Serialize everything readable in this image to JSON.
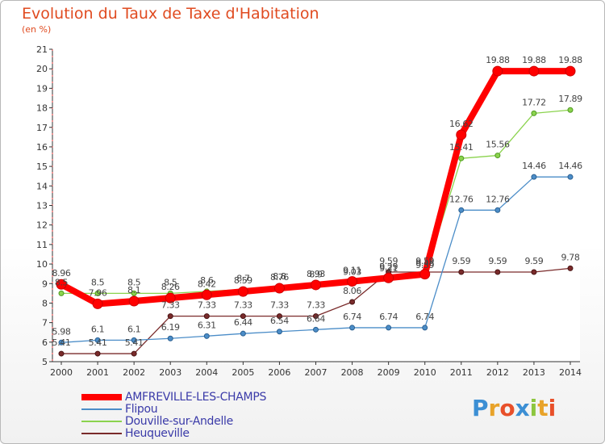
{
  "header": {
    "title": "Evolution du Taux de Taxe d'Habitation",
    "unit": "(en %)"
  },
  "brand": {
    "text": "Proxiti",
    "colors": [
      "#3c8fd4",
      "#e8a32a",
      "#e8502a",
      "#3c8fd4",
      "#8dc63f",
      "#e8a32a",
      "#e8502a"
    ]
  },
  "chart_data": {
    "type": "line",
    "title": "Evolution du Taux de Taxe d'Habitation",
    "ylabel": "(en %)",
    "xlabel": "",
    "ylim": [
      5,
      21
    ],
    "yticks": [
      "5",
      "6",
      "7",
      "8",
      "9",
      "10",
      "11",
      "12",
      "13",
      "14",
      "15",
      "16",
      "17",
      "18",
      "19",
      "20",
      "21"
    ],
    "x": [
      "2000",
      "2001",
      "2002",
      "2003",
      "2004",
      "2005",
      "2006",
      "2007",
      "2008",
      "2009",
      "2010",
      "2011",
      "2012",
      "2013",
      "2014"
    ],
    "grid": false,
    "legend_position": "bottom-left",
    "series": [
      {
        "name": "AMFREVILLE-LES-CHAMPS",
        "color": "#ff0000",
        "values": [
          8.96,
          7.96,
          8.1,
          8.26,
          8.42,
          8.59,
          8.76,
          8.93,
          9.11,
          9.29,
          9.48,
          16.62,
          19.88,
          19.88,
          19.88
        ],
        "labels": [
          "8.96",
          "7.96",
          "8.1",
          "8.26",
          "8.42",
          "8.59",
          "8.76",
          "8.93",
          "9.11",
          "9.29",
          "9.48",
          "16.62",
          "19.88",
          "19.88",
          "19.88"
        ]
      },
      {
        "name": "Flipou",
        "color": "#4b8dc8",
        "values": [
          5.98,
          6.1,
          6.1,
          6.19,
          6.31,
          6.44,
          6.54,
          6.64,
          6.74,
          6.74,
          6.74,
          12.76,
          12.76,
          14.46,
          14.46
        ],
        "labels": [
          "5.98",
          "6.1",
          "6.1",
          "6.19",
          "6.31",
          "6.44",
          "6.54",
          "6.64",
          "6.74",
          "6.74",
          "6.74",
          "12.76",
          "12.76",
          "14.46",
          "14.46"
        ]
      },
      {
        "name": "Douville-sur-Andelle",
        "color": "#8bd34e",
        "values": [
          8.5,
          8.5,
          8.5,
          8.5,
          8.6,
          8.7,
          8.8,
          8.9,
          9.03,
          9.21,
          9.39,
          15.41,
          15.56,
          17.72,
          17.89
        ],
        "labels": [
          "8.5",
          "8.5",
          "8.5",
          "8.5",
          "8.6",
          "8.7",
          "8.8",
          "8.9",
          "9.03",
          "9.21",
          "9.39",
          "15.41",
          "15.56",
          "17.72",
          "17.89"
        ]
      },
      {
        "name": "Heuqueville",
        "color": "#7a2b2b",
        "values": [
          5.41,
          5.41,
          5.41,
          7.33,
          7.33,
          7.33,
          7.33,
          7.33,
          8.06,
          9.59,
          9.59,
          9.59,
          9.59,
          9.59,
          9.78
        ],
        "labels": [
          "5.41",
          "5.41",
          "5.41",
          "7.33",
          "7.33",
          "7.33",
          "7.33",
          "7.33",
          "8.06",
          "9.59",
          "9.59",
          "9.59",
          "9.59",
          "9.59",
          "9.78"
        ]
      }
    ]
  }
}
